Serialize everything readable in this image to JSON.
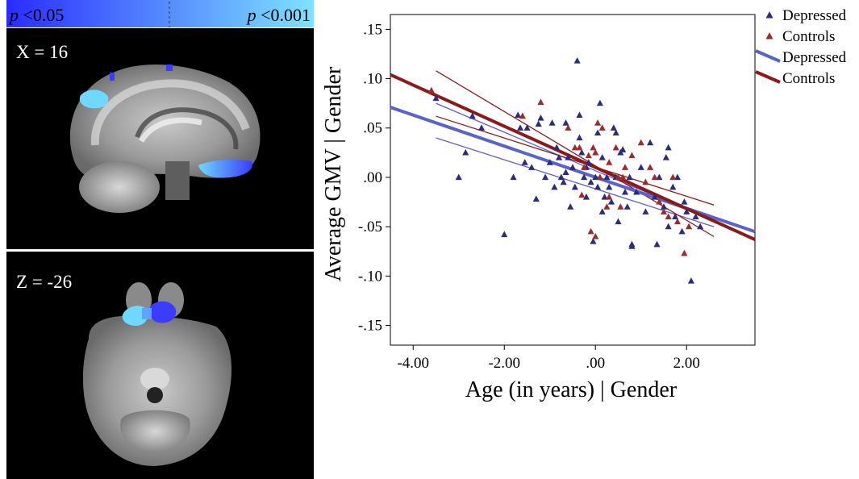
{
  "colorbar": {
    "low_label_prefix": "p",
    "low_label_value": " <0.05",
    "high_label_prefix": "p",
    "high_label_value": " <0.001",
    "gradient_start": "#2a2cff",
    "gradient_end": "#7fe3ff"
  },
  "brain_sagittal": {
    "label": "X = 16"
  },
  "brain_axial": {
    "label": "Z = -26"
  },
  "colors": {
    "depressed": "#2c2c7e",
    "depressed_line": "#5a63c8",
    "controls": "#9e2a2a",
    "controls_line": "#8b1a1a",
    "cluster_light": "#6fd8ff",
    "cluster_dark": "#3a3cff"
  },
  "chart_data": {
    "type": "scatter",
    "xlabel": "Age (in years) | Gender",
    "ylabel": "Average GMV | Gender",
    "xlim": [
      -4.5,
      3.5
    ],
    "ylim": [
      -0.17,
      0.165
    ],
    "xticks": [
      -4.0,
      -2.0,
      0.0,
      2.0
    ],
    "xtick_labels": [
      "-4.00",
      "-2.00",
      ".00",
      "2.00"
    ],
    "yticks": [
      0.15,
      0.1,
      0.05,
      0.0,
      -0.05,
      -0.1,
      -0.15
    ],
    "ytick_labels": [
      ".15",
      ".10",
      ".05",
      ".00",
      "-.05",
      "-.10",
      "-.15"
    ],
    "grid": false,
    "legend_position": "top-right-outside",
    "series": [
      {
        "name": "Depressed",
        "kind": "points",
        "marker": "triangle",
        "x": [
          -3.0,
          -2.85,
          -2.0,
          -1.8,
          -1.7,
          -1.55,
          -1.5,
          -1.4,
          -1.3,
          -1.2,
          -1.1,
          -1.0,
          -0.95,
          -0.9,
          -0.85,
          -0.8,
          -0.75,
          -0.7,
          -0.65,
          -0.6,
          -0.55,
          -0.5,
          -0.45,
          -0.4,
          -0.35,
          -0.3,
          -0.25,
          -0.2,
          -0.15,
          -0.1,
          -0.05,
          0.0,
          0.05,
          0.1,
          0.15,
          0.2,
          0.25,
          0.3,
          0.35,
          0.4,
          0.45,
          0.5,
          0.55,
          0.6,
          0.65,
          0.7,
          0.75,
          0.8,
          0.9,
          1.0,
          1.1,
          1.2,
          1.3,
          1.4,
          1.5,
          1.55,
          1.6,
          1.7,
          1.75,
          1.8,
          1.9,
          2.0,
          2.1,
          2.2,
          -0.35,
          0.05,
          0.45,
          1.6,
          -2.5,
          -3.5,
          -2.7,
          -1.65,
          -1.25,
          -0.2,
          0.8,
          1.35,
          1.95,
          2.3,
          -0.65,
          0.15
        ],
        "y": [
          0.0,
          0.025,
          -0.058,
          0.0,
          0.063,
          0.015,
          0.05,
          0.01,
          -0.022,
          0.06,
          0.0,
          0.015,
          0.055,
          -0.01,
          0.03,
          0.02,
          0.0,
          -0.005,
          0.005,
          0.02,
          -0.03,
          0.01,
          -0.01,
          0.118,
          0.04,
          0.025,
          0.0,
          -0.02,
          0.015,
          -0.005,
          -0.065,
          0.0,
          -0.01,
          0.075,
          0.02,
          -0.02,
          0.0,
          -0.01,
          -0.025,
          0.05,
          0.0,
          -0.045,
          0.025,
          0.028,
          -0.015,
          -0.03,
          0.0,
          -0.07,
          -0.015,
          0.01,
          -0.035,
          0.035,
          -0.02,
          0.0,
          -0.03,
          0.02,
          -0.05,
          -0.01,
          -0.04,
          0.0,
          -0.055,
          -0.035,
          -0.105,
          -0.04,
          0.063,
          0.045,
          0.045,
          0.03,
          0.05,
          0.08,
          0.062,
          0.05,
          0.054,
          0.01,
          -0.068,
          -0.068,
          -0.025,
          -0.05,
          0.055,
          -0.035
        ]
      },
      {
        "name": "Controls",
        "kind": "points",
        "marker": "triangle",
        "x": [
          -3.6,
          -1.6,
          -1.2,
          -0.6,
          -0.45,
          -0.3,
          -0.25,
          -0.15,
          -0.05,
          0.0,
          0.05,
          0.1,
          0.15,
          0.25,
          0.3,
          0.45,
          0.5,
          0.55,
          0.65,
          0.8,
          1.1,
          1.2,
          1.3,
          1.4,
          1.5,
          1.6,
          1.7,
          1.8,
          1.95,
          2.05,
          -0.1,
          0.0,
          0.3,
          0.6,
          -0.35,
          1.0
        ],
        "y": [
          0.088,
          0.062,
          0.076,
          0.05,
          0.03,
          -0.018,
          0.01,
          0.022,
          0.03,
          0.025,
          0.055,
          0.0,
          0.05,
          -0.03,
          0.015,
          0.03,
          0.0,
          -0.03,
          0.01,
          0.022,
          -0.005,
          0.01,
          0.0,
          -0.025,
          -0.035,
          -0.04,
          0.0,
          -0.045,
          -0.077,
          -0.05,
          -0.055,
          -0.06,
          -0.02,
          0.0,
          0.03,
          0.035
        ]
      },
      {
        "name": "Depressed",
        "kind": "fit",
        "x": [
          -4.5,
          3.5
        ],
        "y": [
          0.071,
          -0.055
        ]
      },
      {
        "name": "Controls",
        "kind": "fit",
        "x": [
          -4.5,
          3.5
        ],
        "y": [
          0.104,
          -0.063
        ]
      },
      {
        "name": "",
        "kind": "ci",
        "group": "depressed",
        "x": [
          -3.5,
          2.6
        ],
        "y": [
          0.075,
          -0.044
        ]
      },
      {
        "name": "",
        "kind": "ci",
        "group": "depressed",
        "x": [
          -3.5,
          2.6
        ],
        "y": [
          0.04,
          -0.05
        ]
      },
      {
        "name": "",
        "kind": "ci",
        "group": "controls",
        "x": [
          -3.5,
          2.6
        ],
        "y": [
          0.108,
          -0.06
        ]
      },
      {
        "name": "",
        "kind": "ci",
        "group": "controls",
        "x": [
          -3.5,
          2.6
        ],
        "y": [
          0.062,
          -0.028
        ]
      }
    ]
  }
}
